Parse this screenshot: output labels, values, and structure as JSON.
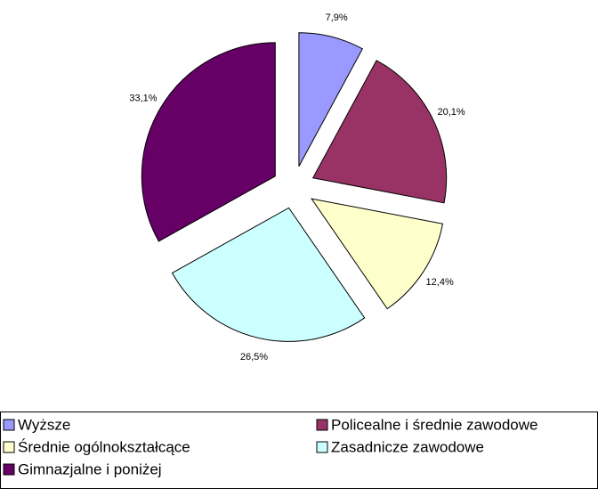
{
  "chart_data": {
    "type": "pie",
    "categories": [
      "Wyższe",
      "Policealne i średnie zawodowe",
      "Średnie ogólnokształcące",
      "Zasadnicze zawodowe",
      "Gimnazjalne i poniżej"
    ],
    "values": [
      7.9,
      20.1,
      12.4,
      26.5,
      33.1
    ],
    "value_labels": [
      "7,9%",
      "20,1%",
      "12,4%",
      "26,5%",
      "33,1%"
    ],
    "colors": [
      "#9999ff",
      "#993366",
      "#ffffcc",
      "#ccffff",
      "#660066"
    ]
  }
}
